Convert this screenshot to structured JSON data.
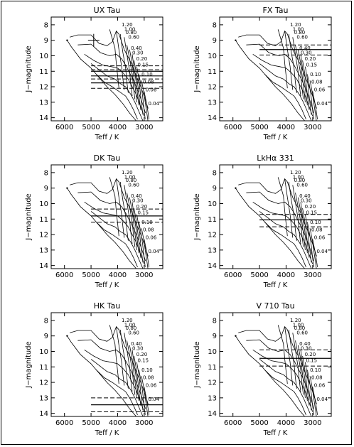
{
  "figure": {
    "panel_titles": [
      "UX Tau",
      "FX Tau",
      "DK Tau",
      "LkHα 331",
      "HK Tau",
      "V 710 Tau"
    ]
  },
  "chart_data": [
    {
      "type": "line",
      "title": "UX Tau",
      "xlabel": "Teff / K",
      "ylabel": "J−magnitude",
      "xlim": [
        6500,
        2300
      ],
      "ylim": [
        14.2,
        7.5
      ],
      "x_ticks": [
        6000,
        5000,
        4000,
        3000
      ],
      "y_ticks": [
        8,
        9,
        10,
        11,
        12,
        13,
        14
      ],
      "mass_labels": [
        "1.20",
        "1.00",
        "0.80",
        "0.60",
        "0.40",
        "0.30",
        "0.20",
        "0.15",
        "0.10",
        "0.08",
        "0.06",
        "0.04"
      ],
      "observations": {
        "solid_lines": [
          11.0,
          11.3,
          11.75
        ],
        "dashed_lines": [
          10.65,
          10.9,
          11.5,
          12.1
        ],
        "marker": {
          "teff": 4900,
          "jmag": 9.0
        }
      }
    },
    {
      "type": "line",
      "title": "FX Tau",
      "xlabel": "Teff / K",
      "ylabel": "J−magnitude",
      "xlim": [
        6500,
        2300
      ],
      "ylim": [
        14.2,
        7.5
      ],
      "x_ticks": [
        6000,
        5000,
        4000,
        3000
      ],
      "y_ticks": [
        8,
        9,
        10,
        11,
        12,
        13,
        14
      ],
      "mass_labels": [
        "1.20",
        "1.00",
        "0.80",
        "0.60",
        "0.40",
        "0.30",
        "0.20",
        "0.15",
        "0.10",
        "0.08",
        "0.06",
        "0.04"
      ],
      "observations": {
        "solid_lines": [
          9.6
        ],
        "dashed_lines": [
          9.3,
          9.95
        ]
      }
    },
    {
      "type": "line",
      "title": "DK Tau",
      "xlabel": "Teff / K",
      "ylabel": "J−magnitude",
      "xlim": [
        6500,
        2300
      ],
      "ylim": [
        14.2,
        7.5
      ],
      "x_ticks": [
        6000,
        5000,
        4000,
        3000
      ],
      "y_ticks": [
        8,
        9,
        10,
        11,
        12,
        13,
        14
      ],
      "mass_labels": [
        "1.20",
        "1.00",
        "0.80",
        "0.60",
        "0.40",
        "0.30",
        "0.20",
        "0.15",
        "0.10",
        "0.08",
        "0.06",
        "0.04"
      ],
      "observations": {
        "solid_lines": [
          10.8
        ],
        "dashed_lines": [
          10.35,
          11.2
        ]
      }
    },
    {
      "type": "line",
      "title": "LkHα 331",
      "xlabel": "Teff / K",
      "ylabel": "J−magnitude",
      "xlim": [
        6500,
        2300
      ],
      "ylim": [
        14.2,
        7.5
      ],
      "x_ticks": [
        6000,
        5000,
        4000,
        3000
      ],
      "y_ticks": [
        8,
        9,
        10,
        11,
        12,
        13,
        14
      ],
      "mass_labels": [
        "1.20",
        "1.00",
        "0.80",
        "0.60",
        "0.40",
        "0.30",
        "0.20",
        "0.15",
        "0.10",
        "0.08",
        "0.06",
        "0.04"
      ],
      "observations": {
        "solid_lines": [
          11.05
        ],
        "dashed_lines": [
          10.7,
          11.5
        ]
      }
    },
    {
      "type": "line",
      "title": "HK Tau",
      "xlabel": "Teff / K",
      "ylabel": "J−magnitude",
      "xlim": [
        6500,
        2300
      ],
      "ylim": [
        14.2,
        7.5
      ],
      "x_ticks": [
        6000,
        5000,
        4000,
        3000
      ],
      "y_ticks": [
        8,
        9,
        10,
        11,
        12,
        13,
        14
      ],
      "mass_labels": [
        "1.20",
        "1.00",
        "0.80",
        "0.60",
        "0.40",
        "0.30",
        "0.20",
        "0.15",
        "0.10",
        "0.08",
        "0.06",
        "0.04"
      ],
      "observations": {
        "solid_lines": [
          13.45
        ],
        "dashed_lines": [
          13.0,
          13.9
        ]
      }
    },
    {
      "type": "line",
      "title": "V 710 Tau",
      "xlabel": "Teff / K",
      "ylabel": "J−magnitude",
      "xlim": [
        6500,
        2300
      ],
      "ylim": [
        14.2,
        7.5
      ],
      "x_ticks": [
        6000,
        5000,
        4000,
        3000
      ],
      "y_ticks": [
        8,
        9,
        10,
        11,
        12,
        13,
        14
      ],
      "mass_labels": [
        "1.20",
        "1.00",
        "0.80",
        "0.60",
        "0.40",
        "0.30",
        "0.20",
        "0.15",
        "0.10",
        "0.08",
        "0.06",
        "0.04"
      ],
      "observations": {
        "solid_lines": [
          10.45
        ],
        "dashed_lines": [
          9.9,
          10.95
        ]
      }
    }
  ]
}
